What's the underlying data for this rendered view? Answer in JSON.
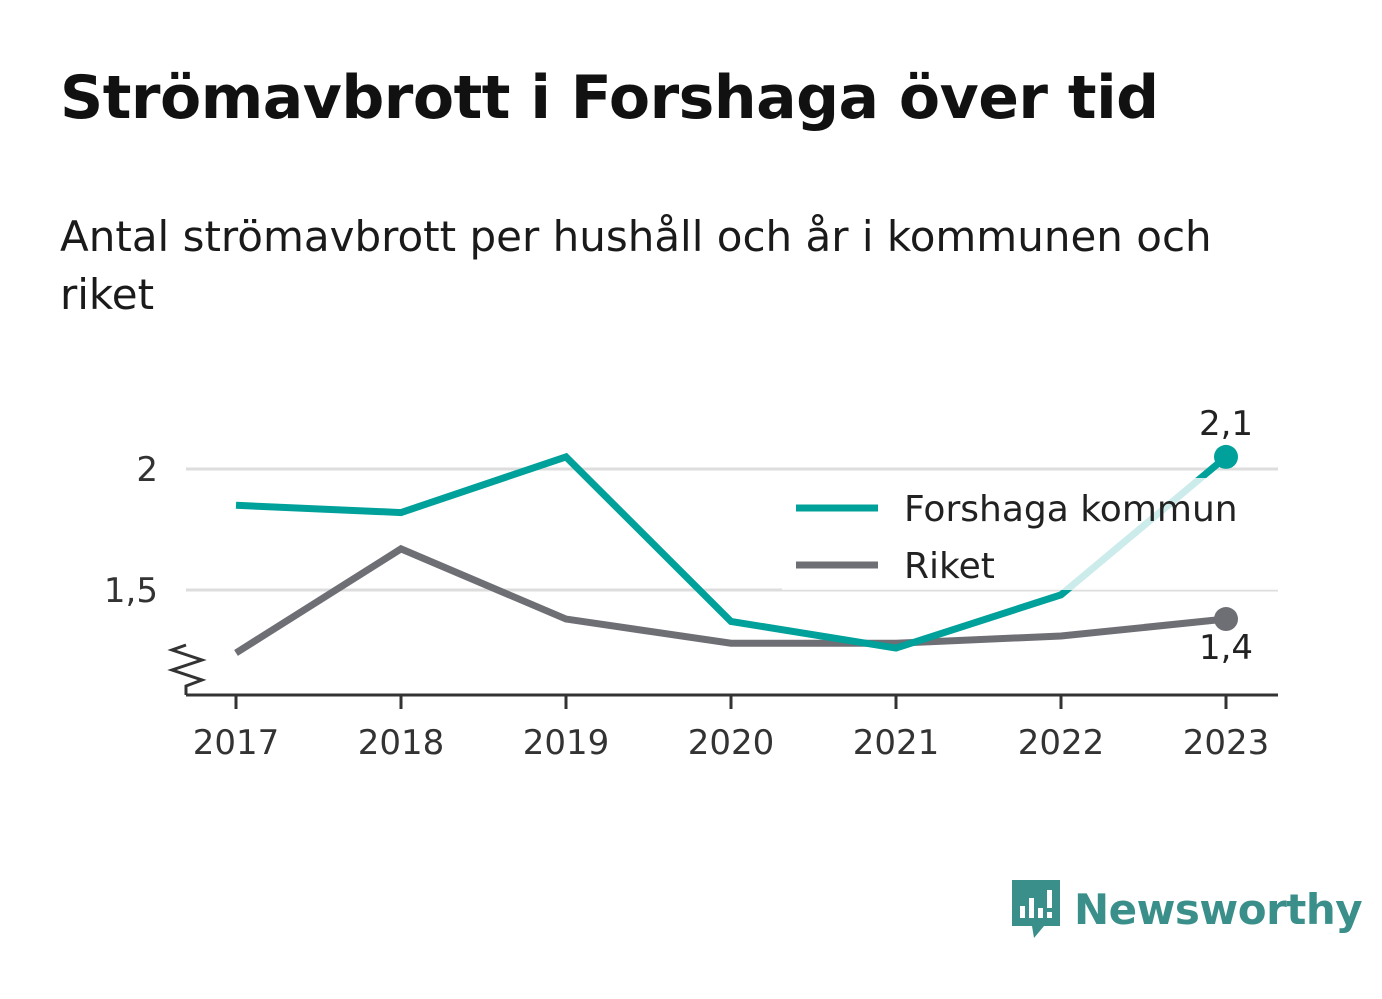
{
  "header": {
    "title": "Strömavbrott i Forshaga över tid",
    "subtitle": "Antal strömavbrott per hushåll och år i kommunen och riket"
  },
  "chart_data": {
    "type": "line",
    "title": "Strömavbrott i Forshaga över tid",
    "subtitle": "Antal strömavbrott per hushåll och år i kommunen och riket",
    "xlabel": "",
    "ylabel": "",
    "x": [
      "2017",
      "2018",
      "2019",
      "2020",
      "2021",
      "2022",
      "2023"
    ],
    "y_ticks": [
      {
        "value": 1.5,
        "label": "1,5"
      },
      {
        "value": 2,
        "label": "2"
      }
    ],
    "ylim": [
      1.07,
      2.25
    ],
    "y_axis_break": true,
    "grid": true,
    "legend_position": "top-right",
    "series": [
      {
        "name": "Forshaga kommun",
        "color": "#00a19a",
        "values": [
          1.85,
          1.82,
          2.05,
          1.37,
          1.26,
          1.48,
          2.05
        ],
        "end_label": "2,1"
      },
      {
        "name": "Riket",
        "color": "#6e6e75",
        "values": [
          1.24,
          1.67,
          1.38,
          1.28,
          1.28,
          1.31,
          1.38
        ],
        "end_label": "1,4"
      }
    ]
  },
  "branding": {
    "name": "Newsworthy",
    "icon": "bar-chart-speech-bubble-icon",
    "color": "#3b8f8a"
  }
}
